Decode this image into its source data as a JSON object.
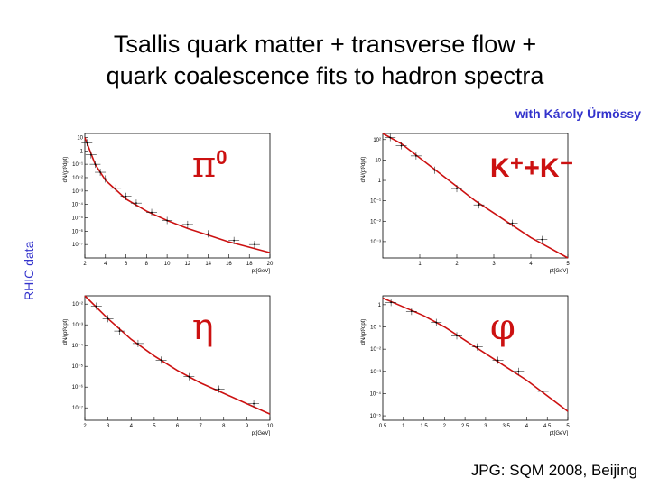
{
  "slide": {
    "title_line1": "Tsallis quark matter + transverse  flow +",
    "title_line2": "quark coalescence fits to hadron spectra",
    "credit": "with Károly Ürmössy",
    "side_label": "RHIC data",
    "footer": "JPG: SQM 2008, Beijing"
  },
  "colors": {
    "fit": "#cc1111",
    "accent_text": "#3333cc",
    "data": "#000000"
  },
  "chart_data": [
    {
      "type": "scatter",
      "particle": "π",
      "particle_sup": "0",
      "xlabel": "pt[GeV]",
      "ylabel": "dN/(pt²dpt)",
      "xlim": [
        2,
        20
      ],
      "ylim_log10": [
        -8,
        1.3
      ],
      "log_y": true,
      "x_ticks": [
        2,
        4,
        6,
        8,
        10,
        12,
        14,
        16,
        18,
        20
      ],
      "y_ticks_log10": [
        1,
        0,
        -1,
        -2,
        -3,
        -4,
        -5,
        -6,
        -7
      ],
      "y_tick_labels": [
        "10",
        "1",
        "10⁻¹",
        "10⁻²",
        "10⁻³",
        "10⁻⁴",
        "10⁻⁵",
        "10⁻⁶",
        "10⁻⁷"
      ],
      "points": [
        {
          "x": 2.2,
          "y": 0.6
        },
        {
          "x": 2.6,
          "y": -0.3
        },
        {
          "x": 3.0,
          "y": -1.0
        },
        {
          "x": 3.5,
          "y": -1.6
        },
        {
          "x": 4.0,
          "y": -2.1
        },
        {
          "x": 5.0,
          "y": -2.8
        },
        {
          "x": 6.0,
          "y": -3.4
        },
        {
          "x": 7.0,
          "y": -3.9
        },
        {
          "x": 8.5,
          "y": -4.6
        },
        {
          "x": 10.0,
          "y": -5.2
        },
        {
          "x": 12.0,
          "y": -5.5
        },
        {
          "x": 14.0,
          "y": -6.2
        },
        {
          "x": 16.5,
          "y": -6.7
        },
        {
          "x": 18.5,
          "y": -7.0
        }
      ],
      "fit": [
        {
          "x": 2,
          "y": 1.0
        },
        {
          "x": 3,
          "y": -1.0
        },
        {
          "x": 4,
          "y": -2.2
        },
        {
          "x": 6,
          "y": -3.6
        },
        {
          "x": 8,
          "y": -4.5
        },
        {
          "x": 10,
          "y": -5.2
        },
        {
          "x": 12,
          "y": -5.8
        },
        {
          "x": 14,
          "y": -6.3
        },
        {
          "x": 16,
          "y": -6.8
        },
        {
          "x": 18,
          "y": -7.2
        },
        {
          "x": 20,
          "y": -7.6
        }
      ]
    },
    {
      "type": "scatter",
      "particle": "K⁺+K⁻",
      "particle_sup": "",
      "xlabel": "pt[GeV]",
      "ylabel": "dN/(pt²dpt)",
      "xlim": [
        0,
        5
      ],
      "ylim_log10": [
        -3.8,
        2.3
      ],
      "log_y": true,
      "x_ticks": [
        1,
        2,
        3,
        4,
        5
      ],
      "y_ticks_log10": [
        2,
        1,
        0,
        -1,
        -2,
        -3
      ],
      "y_tick_labels": [
        "10²",
        "10",
        "1",
        "10⁻¹",
        "10⁻²",
        "10⁻³"
      ],
      "points": [
        {
          "x": 0.2,
          "y": 2.1
        },
        {
          "x": 0.5,
          "y": 1.7
        },
        {
          "x": 0.9,
          "y": 1.2
        },
        {
          "x": 1.4,
          "y": 0.5
        },
        {
          "x": 2.0,
          "y": -0.4
        },
        {
          "x": 2.6,
          "y": -1.2
        },
        {
          "x": 3.5,
          "y": -2.1
        },
        {
          "x": 4.3,
          "y": -2.9
        }
      ],
      "fit": [
        {
          "x": 0.0,
          "y": 2.3
        },
        {
          "x": 0.5,
          "y": 1.8
        },
        {
          "x": 1.0,
          "y": 1.1
        },
        {
          "x": 1.5,
          "y": 0.4
        },
        {
          "x": 2.0,
          "y": -0.3
        },
        {
          "x": 2.5,
          "y": -1.0
        },
        {
          "x": 3.0,
          "y": -1.6
        },
        {
          "x": 3.5,
          "y": -2.2
        },
        {
          "x": 4.0,
          "y": -2.8
        },
        {
          "x": 4.5,
          "y": -3.3
        },
        {
          "x": 5.0,
          "y": -3.8
        }
      ]
    },
    {
      "type": "scatter",
      "particle": "η",
      "particle_sup": "",
      "xlabel": "pt[GeV]",
      "ylabel": "dN/(pt²dpt)",
      "xlim": [
        2,
        10
      ],
      "ylim_log10": [
        -7.6,
        -1.6
      ],
      "log_y": true,
      "x_ticks": [
        2,
        3,
        4,
        5,
        6,
        7,
        8,
        9,
        10
      ],
      "y_ticks_log10": [
        -2,
        -3,
        -4,
        -5,
        -6,
        -7
      ],
      "y_tick_labels": [
        "10⁻²",
        "10⁻³",
        "10⁻⁴",
        "10⁻⁵",
        "10⁻⁶",
        "10⁻⁷"
      ],
      "points": [
        {
          "x": 2.5,
          "y": -2.1
        },
        {
          "x": 3.0,
          "y": -2.7
        },
        {
          "x": 3.5,
          "y": -3.3
        },
        {
          "x": 4.3,
          "y": -3.9
        },
        {
          "x": 5.3,
          "y": -4.7
        },
        {
          "x": 6.5,
          "y": -5.5
        },
        {
          "x": 7.8,
          "y": -6.1
        },
        {
          "x": 9.3,
          "y": -6.8
        }
      ],
      "fit": [
        {
          "x": 2.0,
          "y": -1.6
        },
        {
          "x": 3.0,
          "y": -2.7
        },
        {
          "x": 4.0,
          "y": -3.7
        },
        {
          "x": 5.0,
          "y": -4.5
        },
        {
          "x": 6.0,
          "y": -5.2
        },
        {
          "x": 7.0,
          "y": -5.8
        },
        {
          "x": 8.0,
          "y": -6.3
        },
        {
          "x": 9.0,
          "y": -6.8
        },
        {
          "x": 10.0,
          "y": -7.3
        }
      ]
    },
    {
      "type": "scatter",
      "particle": "φ",
      "particle_sup": "",
      "xlabel": "pt[GeV]",
      "ylabel": "dN/(pt²dpt)",
      "xlim": [
        0.5,
        5
      ],
      "ylim_log10": [
        -5.2,
        0.4
      ],
      "log_y": true,
      "x_ticks": [
        0.5,
        1,
        1.5,
        2,
        2.5,
        3,
        3.5,
        4,
        4.5,
        5
      ],
      "y_ticks_log10": [
        0,
        -1,
        -2,
        -3,
        -4,
        -5
      ],
      "y_tick_labels": [
        "1",
        "10⁻¹",
        "10⁻²",
        "10⁻³",
        "10⁻⁴",
        "10⁻⁵"
      ],
      "points": [
        {
          "x": 0.7,
          "y": 0.1
        },
        {
          "x": 1.2,
          "y": -0.3
        },
        {
          "x": 1.8,
          "y": -0.8
        },
        {
          "x": 2.3,
          "y": -1.4
        },
        {
          "x": 2.8,
          "y": -1.9
        },
        {
          "x": 3.3,
          "y": -2.5
        },
        {
          "x": 3.8,
          "y": -3.0
        },
        {
          "x": 4.4,
          "y": -3.9
        }
      ],
      "fit": [
        {
          "x": 0.5,
          "y": 0.3
        },
        {
          "x": 1.0,
          "y": -0.1
        },
        {
          "x": 1.5,
          "y": -0.5
        },
        {
          "x": 2.0,
          "y": -1.0
        },
        {
          "x": 2.5,
          "y": -1.6
        },
        {
          "x": 3.0,
          "y": -2.2
        },
        {
          "x": 3.5,
          "y": -2.8
        },
        {
          "x": 4.0,
          "y": -3.4
        },
        {
          "x": 4.5,
          "y": -4.1
        },
        {
          "x": 5.0,
          "y": -4.8
        }
      ]
    }
  ]
}
